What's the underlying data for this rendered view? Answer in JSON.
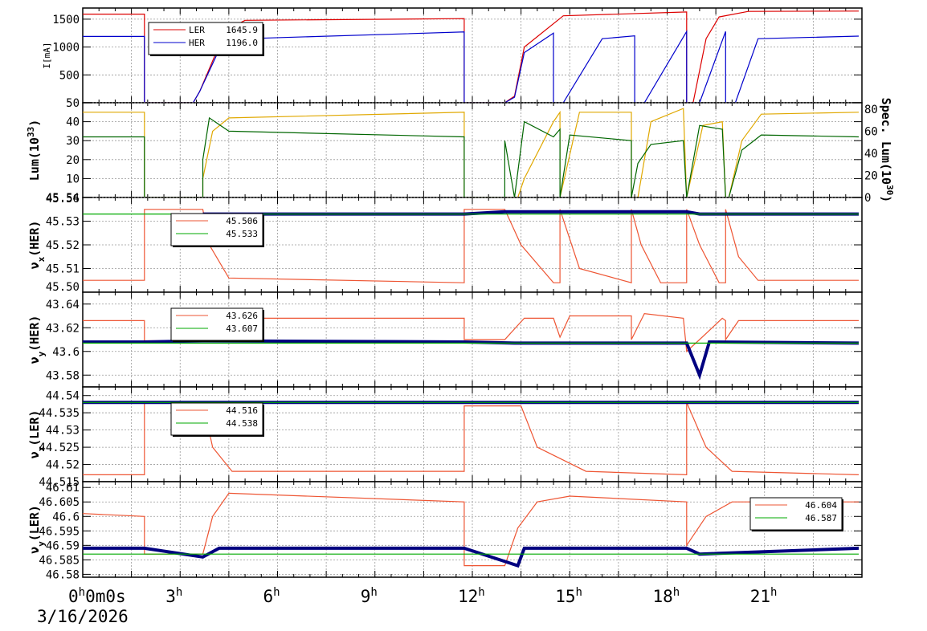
{
  "chart_data": {
    "type": "line",
    "date_label": "3/16/2026",
    "x_ticks": [
      {
        "h": 0,
        "text": "0",
        "sup": "h",
        "extra": "0m0s"
      },
      {
        "h": 3,
        "text": "3",
        "sup": "h"
      },
      {
        "h": 6,
        "text": "6",
        "sup": "h"
      },
      {
        "h": 9,
        "text": "9",
        "sup": "h"
      },
      {
        "h": 12,
        "text": "12",
        "sup": "h"
      },
      {
        "h": 15,
        "text": "15",
        "sup": "h"
      },
      {
        "h": 18,
        "text": "18",
        "sup": "h"
      },
      {
        "h": 21,
        "text": "21",
        "sup": "h"
      }
    ],
    "x_range_hours": [
      0,
      24
    ],
    "colors": {
      "ler": "#dd0000",
      "her": "#0000cc",
      "yellow": "#e0a800",
      "green": "#006600",
      "orange": "#ee5533",
      "navy": "#000080",
      "greenline": "#00aa00"
    },
    "panels": [
      {
        "ylabel": "I[mA]",
        "ylim": [
          0,
          1700
        ],
        "yticks": [
          "500",
          "1000",
          "1500"
        ],
        "ytick_values": [
          500,
          1000,
          1500
        ],
        "legend": [
          {
            "name": "LER",
            "value": "1645.9"
          },
          {
            "name": "HER",
            "value": "1196.0"
          }
        ],
        "series": [
          {
            "color": "ler",
            "x": [
              0,
              1.9,
              1.9,
              3.4,
              3.6,
              4.4,
              5,
              11.75,
              11.75,
              13.0,
              13.3,
              13.6,
              14.8,
              18.6,
              18.6,
              18.8,
              19.2,
              19.6,
              20.5,
              23.9
            ],
            "y": [
              1590,
              1590,
              0,
              0,
              200,
              1300,
              1480,
              1510,
              0,
              0,
              120,
              1000,
              1560,
              1630,
              0,
              0,
              1150,
              1540,
              1640,
              1645
            ]
          },
          {
            "color": "her",
            "x": [
              0,
              1.9,
              1.9,
              3.4,
              3.6,
              4.4,
              5,
              11.75,
              11.75,
              13.0,
              13.3,
              13.6,
              14.5,
              14.5,
              14.8,
              16.0,
              17.0,
              17.0,
              17.3,
              18.6,
              18.6,
              19.0,
              19.8,
              19.8,
              20.1,
              20.8,
              23.9
            ],
            "y": [
              1190,
              1190,
              0,
              0,
              200,
              1200,
              1150,
              1270,
              0,
              0,
              100,
              900,
              1250,
              0,
              0,
              1150,
              1200,
              0,
              0,
              1280,
              0,
              0,
              1280,
              0,
              0,
              1150,
              1196
            ]
          }
        ]
      },
      {
        "ylabel": "Lum(10",
        "ylabel_sup": "33",
        "ylabel_close": ")",
        "ylim": [
          0,
          50
        ],
        "yticks": [
          "10",
          "20",
          "30",
          "40",
          "50"
        ],
        "ytick_values": [
          10,
          20,
          30,
          40,
          50
        ],
        "right_label": "Spec. Lum(10",
        "right_label_sup": "30",
        "right_label_close": ")",
        "right_ylim": [
          0,
          86
        ],
        "right_yticks": [
          "0",
          "20",
          "40",
          "60",
          "80"
        ],
        "right_ytick_values": [
          0,
          20,
          40,
          60,
          80
        ],
        "series": [
          {
            "color": "yellow",
            "x": [
              0,
              1.9,
              1.9,
              3.7,
              3.7,
              4.0,
              4.5,
              11.75,
              11.75,
              13.4,
              13.6,
              14.5,
              14.7,
              14.7,
              15.3,
              16.9,
              16.9,
              17.1,
              17.5,
              18.5,
              18.6,
              18.6,
              19.1,
              19.7,
              19.8,
              19.9,
              20.3,
              20.9,
              23.9
            ],
            "y": [
              45,
              45,
              0,
              0,
              10,
              35,
              42,
              45,
              0,
              0,
              10,
              40,
              45,
              0,
              45,
              45,
              0,
              0,
              40,
              47,
              0,
              0,
              38,
              40,
              0,
              0,
              30,
              44,
              45
            ]
          },
          {
            "color": "green",
            "x": [
              0,
              1.9,
              1.9,
              3.7,
              3.7,
              3.9,
              4.5,
              11.75,
              11.75,
              13.0,
              13.0,
              13.3,
              13.6,
              14.5,
              14.7,
              14.7,
              15.0,
              16.9,
              16.9,
              17.1,
              17.5,
              18.5,
              18.6,
              18.6,
              19.0,
              19.7,
              19.8,
              19.9,
              20.3,
              20.9,
              23.9
            ],
            "y": [
              32,
              32,
              0,
              0,
              20,
              42,
              35,
              32,
              0,
              0,
              30,
              0,
              40,
              32,
              36,
              0,
              33,
              30,
              0,
              18,
              28,
              30,
              0,
              0,
              38,
              36,
              0,
              0,
              25,
              33,
              32
            ]
          }
        ]
      },
      {
        "ylabel": "ν",
        "ylabel_sub": "x",
        "ylabel_close": "(HER)",
        "ylim": [
          45.5,
          45.54
        ],
        "yticks": [
          "45.51",
          "45.52",
          "45.53",
          "45.54"
        ],
        "ytick_values": [
          45.51,
          45.52,
          45.53,
          45.54
        ],
        "top_cut_label": "45.56",
        "bottom_cut_label": "45.50",
        "legend": [
          {
            "name": "",
            "value": "45.506"
          },
          {
            "name": "",
            "value": "45.533"
          }
        ],
        "series": [
          {
            "color": "orange",
            "x": [
              0,
              1.9,
              1.9,
              3.7,
              3.9,
              4.5,
              11.75,
              11.75,
              13.0,
              13.5,
              14.5,
              14.7,
              14.7,
              15.3,
              16.9,
              16.9,
              17.2,
              17.8,
              18.6,
              18.6,
              19.0,
              19.6,
              19.8,
              19.8,
              20.2,
              20.8,
              23.9
            ],
            "y": [
              45.505,
              45.505,
              45.535,
              45.535,
              45.52,
              45.506,
              45.504,
              45.535,
              45.535,
              45.52,
              45.504,
              45.504,
              45.535,
              45.51,
              45.504,
              45.535,
              45.52,
              45.504,
              45.504,
              45.535,
              45.52,
              45.504,
              45.504,
              45.535,
              45.515,
              45.505,
              45.505
            ]
          },
          {
            "color": "navy",
            "x": [
              3.7,
              11.75,
              13.0,
              18.6,
              19.0,
              23.9
            ],
            "y": [
              45.533,
              45.533,
              45.534,
              45.534,
              45.533,
              45.533
            ]
          },
          {
            "color": "greenline",
            "x": [
              0,
              23.9
            ],
            "y": [
              45.533,
              45.533
            ]
          }
        ]
      },
      {
        "ylabel": "ν",
        "ylabel_sub": "y",
        "ylabel_close": "(HER)",
        "ylim": [
          43.57,
          43.65
        ],
        "yticks": [
          "43.58",
          "43.6",
          "43.62",
          "43.64"
        ],
        "ytick_values": [
          43.58,
          43.6,
          43.62,
          43.64
        ],
        "legend": [
          {
            "name": "",
            "value": "43.626"
          },
          {
            "name": "",
            "value": "43.607"
          }
        ],
        "series": [
          {
            "color": "orange",
            "x": [
              0,
              1.9,
              1.9,
              3.7,
              3.9,
              11.75,
              11.75,
              13.0,
              13.6,
              14.5,
              14.7,
              14.7,
              15.0,
              16.9,
              16.9,
              17.3,
              18.5,
              18.6,
              19.0,
              19.7,
              19.8,
              19.8,
              20.2,
              23.9
            ],
            "y": [
              43.626,
              43.626,
              43.609,
              43.609,
              43.628,
              43.628,
              43.61,
              43.61,
              43.628,
              43.628,
              43.612,
              43.612,
              43.63,
              43.63,
              43.61,
              43.632,
              43.628,
              43.6,
              43.61,
              43.628,
              43.626,
              43.61,
              43.626,
              43.626
            ]
          },
          {
            "color": "navy",
            "x": [
              0,
              1.9,
              3.7,
              11.75,
              13.3,
              18.6,
              19.0,
              19.3,
              23.9
            ],
            "y": [
              43.608,
              43.608,
              43.609,
              43.608,
              43.607,
              43.607,
              43.58,
              43.608,
              43.607
            ]
          },
          {
            "color": "greenline",
            "x": [
              0,
              23.9
            ],
            "y": [
              43.607,
              43.607
            ]
          }
        ]
      },
      {
        "ylabel": "ν",
        "ylabel_sub": "x",
        "ylabel_close": "(LER)",
        "ylim": [
          44.515,
          44.5425
        ],
        "yticks": [
          "44.515",
          "44.52",
          "44.525",
          "44.53",
          "44.535",
          "44.54"
        ],
        "ytick_values": [
          44.515,
          44.52,
          44.525,
          44.53,
          44.535,
          44.54
        ],
        "legend": [
          {
            "name": "",
            "value": "44.516"
          },
          {
            "name": "",
            "value": "44.538"
          }
        ],
        "series": [
          {
            "color": "orange",
            "x": [
              0,
              1.9,
              1.9,
              3.7,
              4.0,
              4.6,
              11.75,
              11.75,
              13.0,
              13.5,
              14.0,
              15.5,
              18.6,
              18.6,
              19.2,
              20.0,
              23.9
            ],
            "y": [
              44.517,
              44.517,
              44.538,
              44.538,
              44.525,
              44.518,
              44.518,
              44.537,
              44.537,
              44.537,
              44.525,
              44.518,
              44.517,
              44.538,
              44.525,
              44.518,
              44.517
            ]
          },
          {
            "color": "navy",
            "x": [
              0,
              1.9,
              3.7,
              11.75,
              13.5,
              23.9
            ],
            "y": [
              44.538,
              44.538,
              44.538,
              44.538,
              44.538,
              44.538
            ]
          },
          {
            "color": "greenline",
            "x": [
              0,
              23.9
            ],
            "y": [
              44.538,
              44.538
            ]
          }
        ]
      },
      {
        "ylabel": "ν",
        "ylabel_sub": "y",
        "ylabel_close": "(LER)",
        "ylim": [
          46.579,
          46.612
        ],
        "yticks": [
          "46.58",
          "46.585",
          "46.59",
          "46.595",
          "46.6",
          "46.605",
          "46.61"
        ],
        "ytick_values": [
          46.58,
          46.585,
          46.59,
          46.595,
          46.6,
          46.605,
          46.61
        ],
        "legend": [
          {
            "name": "",
            "value": "46.604"
          },
          {
            "name": "",
            "value": "46.587"
          }
        ],
        "series": [
          {
            "color": "orange",
            "x": [
              0,
              1.9,
              1.9,
              3.7,
              4.0,
              4.5,
              11.75,
              11.75,
              13.0,
              13.4,
              14.0,
              15.0,
              18.6,
              18.6,
              19.2,
              20.0,
              23.9
            ],
            "y": [
              46.601,
              46.6,
              46.587,
              46.587,
              46.6,
              46.608,
              46.605,
              46.583,
              46.583,
              46.596,
              46.605,
              46.607,
              46.605,
              46.59,
              46.6,
              46.605,
              46.605
            ]
          },
          {
            "color": "navy",
            "x": [
              0,
              1.9,
              3.7,
              4.2,
              11.75,
              13.4,
              13.6,
              18.6,
              19.0,
              23.9
            ],
            "y": [
              46.589,
              46.589,
              46.586,
              46.589,
              46.589,
              46.583,
              46.589,
              46.589,
              46.587,
              46.589
            ]
          },
          {
            "color": "greenline",
            "x": [
              0,
              23.9
            ],
            "y": [
              46.587,
              46.587
            ]
          }
        ]
      }
    ]
  }
}
